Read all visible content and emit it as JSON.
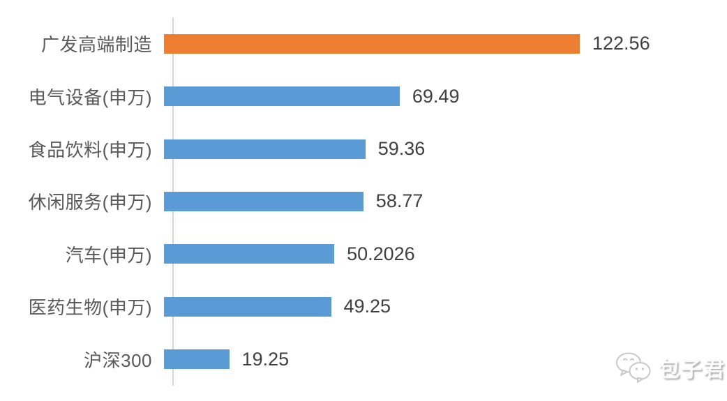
{
  "chart_data": {
    "type": "bar",
    "orientation": "horizontal",
    "title": "",
    "xlabel": "",
    "ylabel": "",
    "categories": [
      "广发高端制造",
      "电气设备(申万)",
      "食品饮料(申万)",
      "休闲服务(申万)",
      "汽车(申万)",
      "医药生物(申万)",
      "沪深300"
    ],
    "values": [
      122.56,
      69.49,
      59.36,
      58.77,
      50.2026,
      49.25,
      19.25
    ],
    "value_labels": [
      "122.56",
      "69.49",
      "59.36",
      "58.77",
      "50.2026",
      "49.25",
      "19.25"
    ],
    "highlight_index": 0,
    "xlim": [
      0,
      131
    ],
    "grid": false,
    "legend": false,
    "colors": {
      "bar_default": "#5B9BD5",
      "bar_highlight": "#ED7D31",
      "axis_line": "#D4D4D4",
      "category_text": "#595959",
      "value_text": "#404040"
    }
  },
  "watermark": {
    "icon": "wechat-icon",
    "text": "包子君"
  }
}
